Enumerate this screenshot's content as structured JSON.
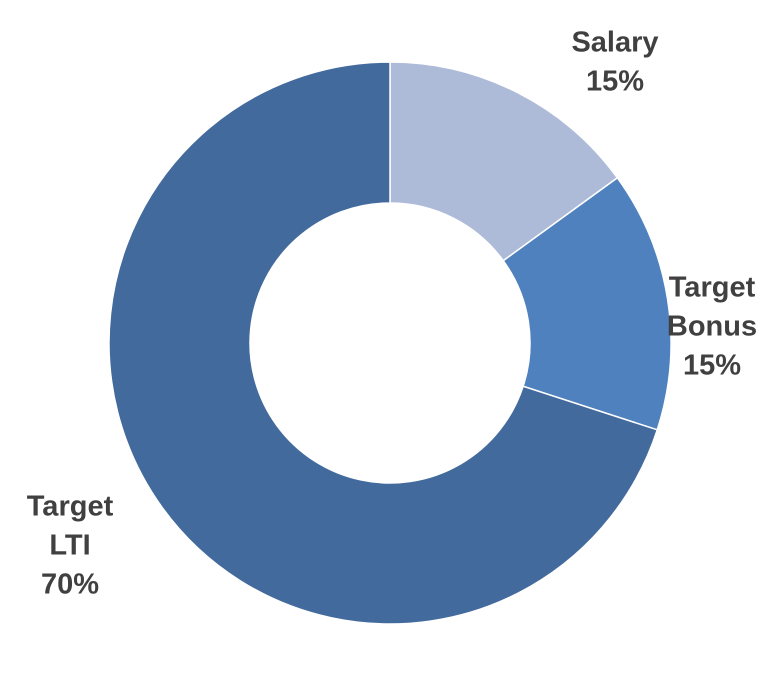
{
  "chart_data": {
    "type": "donut",
    "title": "",
    "categories": [
      "Salary",
      "Target Bonus",
      "Target LTI"
    ],
    "values": [
      15,
      15,
      70
    ],
    "value_format": "percent",
    "colors": [
      "#adbad8",
      "#4e81bd",
      "#426a9d"
    ],
    "legend": "none",
    "data_labels": [
      {
        "name_lines": [
          "Salary"
        ],
        "value_text": "15%"
      },
      {
        "name_lines": [
          "Target",
          "Bonus"
        ],
        "value_text": "15%"
      },
      {
        "name_lines": [
          "Target",
          "LTI"
        ],
        "value_text": "70%"
      }
    ]
  }
}
